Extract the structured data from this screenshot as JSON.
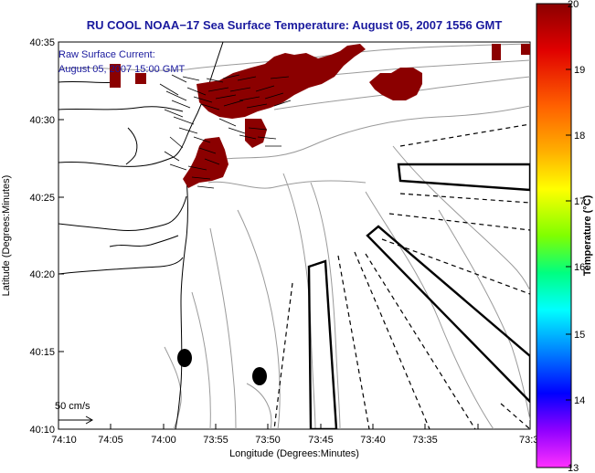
{
  "title": "RU COOL  NOAA−17  Sea Surface Temperature:  August 05, 2007 1556 GMT",
  "current_note": {
    "line1": "Raw Surface Current:",
    "line2": "August 05, 2007 15:00 GMT"
  },
  "scale_label": "50 cm/s",
  "axes": {
    "xlabel": "Longitude (Degrees:Minutes)",
    "ylabel": "Latitude (Degrees:Minutes)",
    "xticks": [
      "74:10",
      "74:05",
      "74:00",
      "73:55",
      "73:50",
      "73:45",
      "73:40",
      "73:35",
      "73:3"
    ],
    "yticks": [
      "40:35",
      "40:30",
      "40:25",
      "40:20",
      "40:15",
      "40:10"
    ]
  },
  "colorbar": {
    "label": "Temperature (°C)",
    "ticks": [
      "20",
      "19",
      "18",
      "17",
      "16",
      "15",
      "14",
      "13"
    ],
    "range": [
      13,
      20
    ]
  },
  "colors": {
    "title_blue": "#1a1a9e",
    "sst_patch": "#8b0000",
    "land_contour": "#000000",
    "bathymetry": "#9a9a9a"
  },
  "icons": {
    "current-vectors": "arrow-field",
    "buoys": "filled-ellipse",
    "sample-region": "outlined-polygon"
  }
}
